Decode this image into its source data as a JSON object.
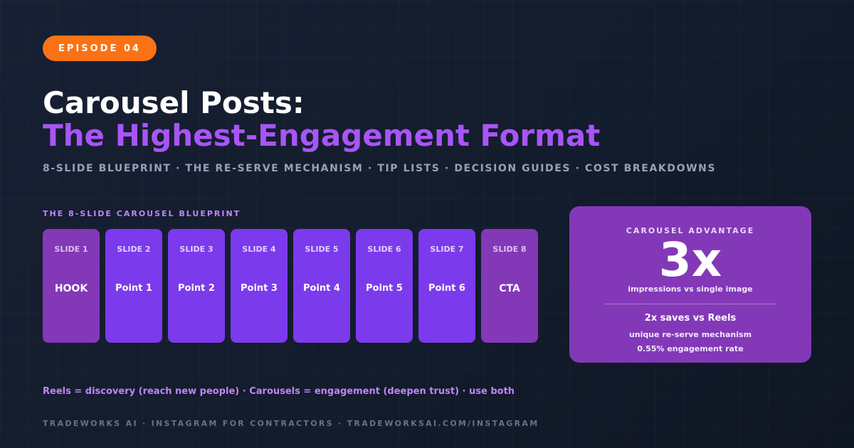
{
  "badge": "EPISODE 04",
  "title_line1": "Carousel Posts:",
  "title_line2": "The Highest-Engagement Format",
  "subtitle": "8-SLIDE BLUEPRINT · THE RE-SERVE MECHANISM · TIP LISTS · DECISION GUIDES · COST BREAKDOWNS",
  "blueprint": {
    "label": "THE 8-SLIDE CAROUSEL BLUEPRINT",
    "slides": [
      {
        "number": "SLIDE 1",
        "label": "HOOK"
      },
      {
        "number": "SLIDE 2",
        "label": "Point 1"
      },
      {
        "number": "SLIDE 3",
        "label": "Point 2"
      },
      {
        "number": "SLIDE 4",
        "label": "Point 3"
      },
      {
        "number": "SLIDE 5",
        "label": "Point 4"
      },
      {
        "number": "SLIDE 6",
        "label": "Point 5"
      },
      {
        "number": "SLIDE 7",
        "label": "Point 6"
      },
      {
        "number": "SLIDE 8",
        "label": "CTA"
      }
    ]
  },
  "advantage": {
    "title": "CAROUSEL ADVANTAGE",
    "big_value": "3x",
    "big_label": "impressions vs single image",
    "stat1": "2x saves vs Reels",
    "stat2": "unique re-serve mechanism",
    "stat3": "0.55% engagement rate"
  },
  "tagline": "Reels = discovery (reach new people) · Carousels = engagement (deepen trust) · use both",
  "footer": "TRADEWORKS AI · INSTAGRAM FOR CONTRACTORS · TRADEWORKSAI.COM/INSTAGRAM",
  "colors": {
    "background": "#172033",
    "badge": "#f97316",
    "accent_purple": "#a855f7",
    "slide_fill": "#7c3aed",
    "slide_edge_fill": "#8338b8",
    "card_fill": "#8338b8"
  }
}
